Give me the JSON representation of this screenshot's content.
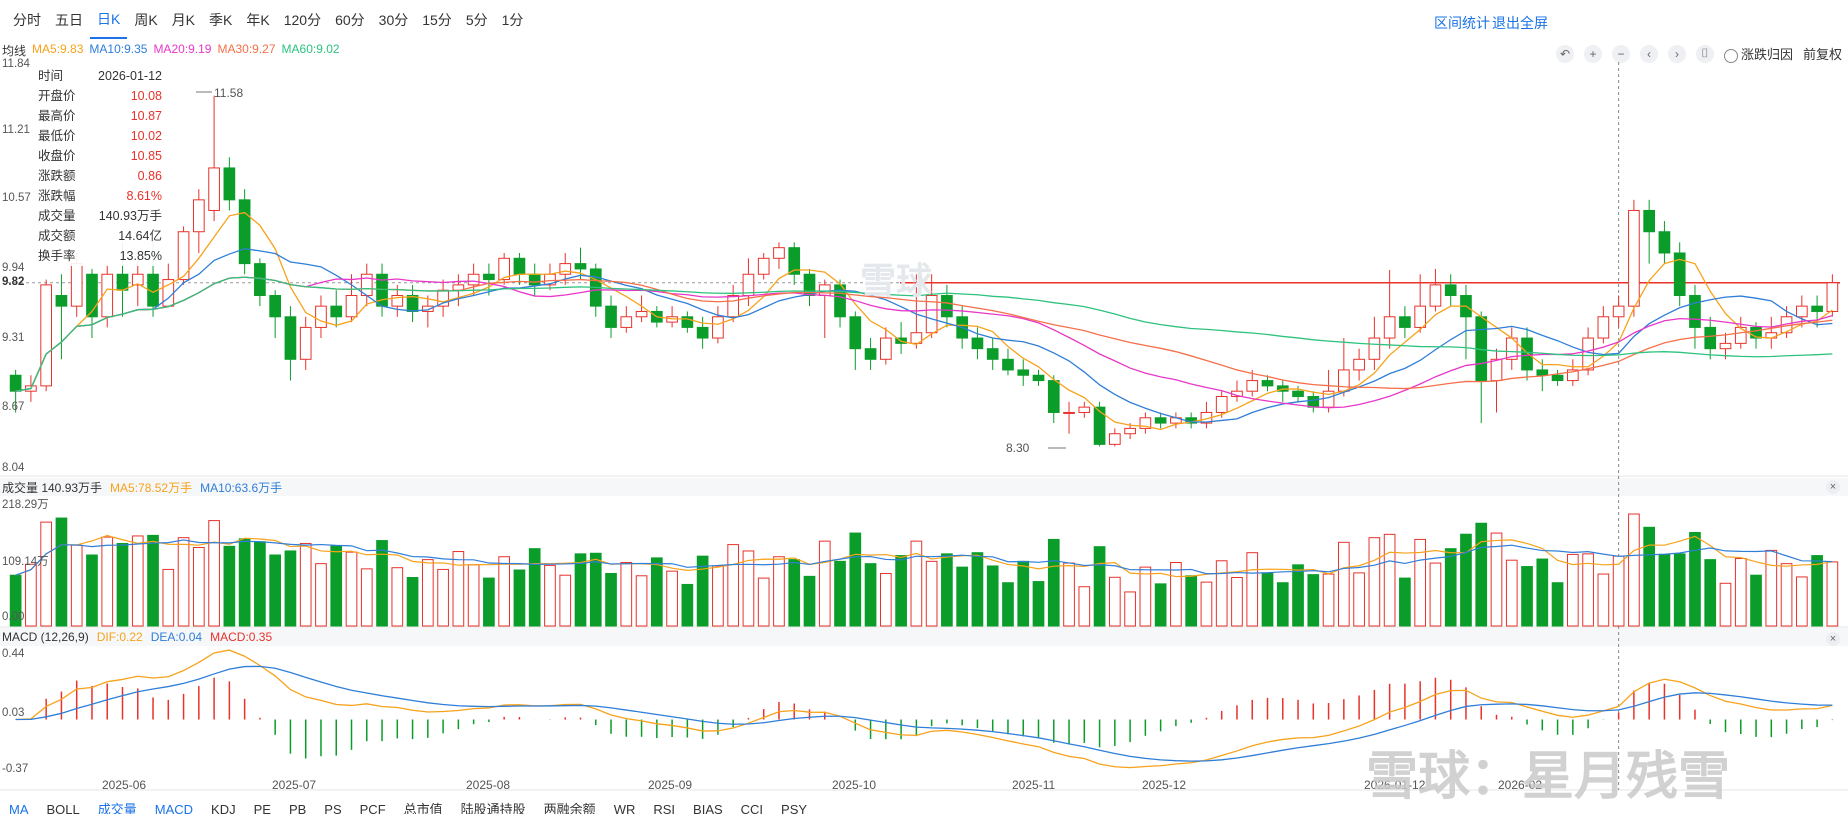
{
  "period_tabs": [
    "分时",
    "五日",
    "日K",
    "周K",
    "月K",
    "季K",
    "年K",
    "120分",
    "60分",
    "30分",
    "15分",
    "5分",
    "1分"
  ],
  "active_tab_index": 2,
  "top_links": {
    "range_stats": "区间统计",
    "exit_fullscreen": "退出全屏"
  },
  "ma_legend": {
    "prefix": "均线",
    "items": [
      {
        "label": "MA5:9.83",
        "color": "#f7a21b"
      },
      {
        "label": "MA10:9.35",
        "color": "#2f7ed8"
      },
      {
        "label": "MA20:9.19",
        "color": "#e837c9"
      },
      {
        "label": "MA30:9.27",
        "color": "#f5704a"
      },
      {
        "label": "MA60:9.02",
        "color": "#2ec27e"
      }
    ]
  },
  "toolbar": {
    "undo": "↶",
    "zoom_in": "+",
    "zoom_out": "−",
    "prev": "‹",
    "next": "›",
    "reset": "⌷",
    "toggle_label": "涨跌归因",
    "adjust_label": "前复权"
  },
  "info_panel": [
    {
      "k": "时间",
      "v": "2026-01-12",
      "cls": "plain"
    },
    {
      "k": "开盘价",
      "v": "10.08",
      "cls": "up"
    },
    {
      "k": "最高价",
      "v": "10.87",
      "cls": "up"
    },
    {
      "k": "最低价",
      "v": "10.02",
      "cls": "up"
    },
    {
      "k": "收盘价",
      "v": "10.85",
      "cls": "up"
    },
    {
      "k": "涨跌额",
      "v": "0.86",
      "cls": "up"
    },
    {
      "k": "涨跌幅",
      "v": "8.61%",
      "cls": "up"
    },
    {
      "k": "成交量",
      "v": "140.93万手",
      "cls": "plain"
    },
    {
      "k": "成交额",
      "v": "14.64亿",
      "cls": "plain"
    },
    {
      "k": "换手率",
      "v": "13.85%",
      "cls": "plain"
    }
  ],
  "price_axis": [
    "11.84",
    "11.21",
    "10.57",
    "9.94",
    "9.82",
    "9.31",
    "8.67",
    "8.04"
  ],
  "annotations": {
    "high": "11.58",
    "low": "8.30"
  },
  "volume_legend": {
    "title": "成交量 140.93万手",
    "ma5": "MA5:78.52万手",
    "ma10": "MA10:63.6万手",
    "ma5_color": "#f7a21b",
    "ma10_color": "#2f7ed8"
  },
  "volume_axis": [
    "218.29万",
    "109.14万",
    "0.00"
  ],
  "macd_legend": {
    "title": "MACD (12,26,9)",
    "dif": "DIF:0.22",
    "dea": "DEA:0.04",
    "macd": "MACD:0.35",
    "dif_color": "#f7a21b",
    "dea_color": "#2f7ed8",
    "macd_color": "#e8322b"
  },
  "macd_axis": [
    "0.44",
    "0.03",
    "-0.37"
  ],
  "x_axis": [
    "2025-06",
    "2025-07",
    "2025-08",
    "2025-09",
    "2025-10",
    "2025-11",
    "2025-12",
    "2026-01-12",
    "2026-02"
  ],
  "watermark": {
    "logo": "雪球",
    "credit": "雪球：星月残雪"
  },
  "bottom_tabs": [
    "MA",
    "BOLL",
    "成交量",
    "MACD",
    "KDJ",
    "PE",
    "PB",
    "PS",
    "PCF",
    "总市值",
    "陆股通持股",
    "两融余额",
    "WR",
    "RSI",
    "BIAS",
    "CCI",
    "PSY"
  ],
  "bottom_active": [
    0,
    2,
    3
  ],
  "colors": {
    "up": "#e8322b",
    "down": "#0b9d2a",
    "accent": "#1a73e8"
  },
  "chart_data": {
    "type": "candlestick",
    "title": "",
    "x_ticks": [
      "2025-06",
      "2025-07",
      "2025-08",
      "2025-09",
      "2025-10",
      "2025-11",
      "2025-12",
      "2026-01-12",
      "2026-02"
    ],
    "ylim": [
      8.04,
      11.84
    ],
    "reference_price": 9.82,
    "ohlc": [
      [
        8.95,
        8.8,
        8.6,
        9.0
      ],
      [
        8.8,
        8.85,
        8.7,
        8.95
      ],
      [
        8.85,
        9.8,
        8.8,
        9.85
      ],
      [
        9.7,
        9.6,
        9.1,
        9.9
      ],
      [
        9.6,
        10.0,
        9.5,
        10.1
      ],
      [
        9.9,
        9.5,
        9.3,
        9.95
      ],
      [
        9.5,
        9.9,
        9.4,
        10.0
      ],
      [
        9.9,
        9.75,
        9.5,
        10.2
      ],
      [
        9.8,
        9.9,
        9.6,
        10.1
      ],
      [
        9.9,
        9.6,
        9.5,
        10.2
      ],
      [
        9.6,
        9.85,
        9.6,
        10.0
      ],
      [
        9.85,
        10.3,
        9.8,
        10.35
      ],
      [
        10.3,
        10.6,
        10.1,
        10.7
      ],
      [
        10.5,
        10.9,
        10.4,
        11.58
      ],
      [
        10.9,
        10.6,
        10.5,
        11.0
      ],
      [
        10.6,
        10.0,
        9.9,
        10.7
      ],
      [
        10.0,
        9.7,
        9.6,
        10.05
      ],
      [
        9.7,
        9.5,
        9.3,
        9.75
      ],
      [
        9.5,
        9.1,
        8.9,
        9.6
      ],
      [
        9.1,
        9.4,
        9.0,
        9.5
      ],
      [
        9.4,
        9.6,
        9.3,
        9.7
      ],
      [
        9.6,
        9.5,
        9.4,
        9.75
      ],
      [
        9.5,
        9.7,
        9.45,
        9.9
      ],
      [
        9.7,
        9.9,
        9.6,
        10.0
      ],
      [
        9.9,
        9.6,
        9.5,
        10.0
      ],
      [
        9.6,
        9.7,
        9.5,
        9.8
      ],
      [
        9.7,
        9.55,
        9.45,
        9.8
      ],
      [
        9.55,
        9.6,
        9.4,
        9.7
      ],
      [
        9.6,
        9.75,
        9.5,
        9.85
      ],
      [
        9.75,
        9.8,
        9.6,
        9.9
      ],
      [
        9.8,
        9.9,
        9.7,
        10.0
      ],
      [
        9.9,
        9.85,
        9.7,
        10.0
      ],
      [
        9.85,
        10.05,
        9.8,
        10.1
      ],
      [
        10.05,
        9.9,
        9.8,
        10.1
      ],
      [
        9.9,
        9.8,
        9.7,
        10.0
      ],
      [
        9.8,
        9.9,
        9.75,
        10.0
      ],
      [
        9.9,
        10.0,
        9.8,
        10.1
      ],
      [
        10.0,
        9.95,
        9.85,
        10.15
      ],
      [
        9.95,
        9.6,
        9.5,
        10.0
      ],
      [
        9.6,
        9.4,
        9.3,
        9.7
      ],
      [
        9.4,
        9.5,
        9.35,
        9.6
      ],
      [
        9.5,
        9.55,
        9.45,
        9.7
      ],
      [
        9.55,
        9.45,
        9.4,
        9.6
      ],
      [
        9.45,
        9.5,
        9.4,
        9.6
      ],
      [
        9.5,
        9.4,
        9.35,
        9.55
      ],
      [
        9.4,
        9.3,
        9.2,
        9.5
      ],
      [
        9.3,
        9.5,
        9.25,
        9.6
      ],
      [
        9.5,
        9.7,
        9.45,
        9.8
      ],
      [
        9.7,
        9.9,
        9.6,
        10.05
      ],
      [
        9.9,
        10.05,
        9.85,
        10.1
      ],
      [
        10.05,
        10.15,
        9.95,
        10.2
      ],
      [
        10.15,
        9.9,
        9.8,
        10.2
      ],
      [
        9.9,
        9.7,
        9.6,
        9.95
      ],
      [
        9.7,
        9.8,
        9.3,
        9.85
      ],
      [
        9.8,
        9.5,
        9.4,
        9.85
      ],
      [
        9.5,
        9.2,
        9.0,
        9.55
      ],
      [
        9.2,
        9.1,
        9.0,
        9.3
      ],
      [
        9.1,
        9.3,
        9.05,
        9.4
      ],
      [
        9.3,
        9.25,
        9.15,
        9.45
      ],
      [
        9.25,
        9.35,
        9.2,
        9.9
      ],
      [
        9.35,
        9.7,
        9.3,
        9.9
      ],
      [
        9.7,
        9.5,
        9.4,
        9.8
      ],
      [
        9.5,
        9.3,
        9.2,
        9.6
      ],
      [
        9.3,
        9.2,
        9.1,
        9.4
      ],
      [
        9.2,
        9.1,
        9.0,
        9.3
      ],
      [
        9.1,
        9.0,
        8.95,
        9.2
      ],
      [
        9.0,
        8.95,
        8.85,
        9.1
      ],
      [
        8.95,
        8.9,
        8.85,
        9.0
      ],
      [
        8.9,
        8.6,
        8.5,
        8.95
      ],
      [
        8.6,
        8.6,
        8.4,
        8.7
      ],
      [
        8.6,
        8.65,
        8.55,
        8.7
      ],
      [
        8.65,
        8.3,
        8.28,
        8.7
      ],
      [
        8.3,
        8.4,
        8.28,
        8.45
      ],
      [
        8.4,
        8.45,
        8.35,
        8.5
      ],
      [
        8.45,
        8.55,
        8.4,
        8.6
      ],
      [
        8.55,
        8.5,
        8.45,
        8.6
      ],
      [
        8.5,
        8.55,
        8.45,
        8.6
      ],
      [
        8.55,
        8.5,
        8.45,
        8.6
      ],
      [
        8.5,
        8.6,
        8.45,
        8.7
      ],
      [
        8.6,
        8.75,
        8.55,
        8.8
      ],
      [
        8.75,
        8.8,
        8.7,
        8.9
      ],
      [
        8.8,
        8.9,
        8.75,
        9.0
      ],
      [
        8.9,
        8.85,
        8.8,
        8.95
      ],
      [
        8.85,
        8.8,
        8.7,
        8.9
      ],
      [
        8.8,
        8.75,
        8.7,
        8.85
      ],
      [
        8.75,
        8.65,
        8.6,
        8.8
      ],
      [
        8.65,
        8.8,
        8.6,
        9.0
      ],
      [
        8.8,
        9.0,
        8.75,
        9.3
      ],
      [
        9.0,
        9.1,
        8.9,
        9.2
      ],
      [
        9.1,
        9.3,
        9.0,
        9.5
      ],
      [
        9.3,
        9.5,
        9.2,
        9.94
      ],
      [
        9.5,
        9.4,
        9.3,
        9.6
      ],
      [
        9.4,
        9.6,
        9.35,
        9.9
      ],
      [
        9.6,
        9.8,
        9.55,
        9.95
      ],
      [
        9.8,
        9.7,
        9.6,
        9.9
      ],
      [
        9.7,
        9.5,
        9.1,
        9.8
      ],
      [
        9.5,
        8.9,
        8.5,
        9.55
      ],
      [
        8.9,
        9.1,
        8.6,
        9.2
      ],
      [
        9.1,
        9.3,
        9.0,
        9.4
      ],
      [
        9.3,
        9.0,
        8.9,
        9.4
      ],
      [
        9.0,
        8.95,
        8.8,
        9.1
      ],
      [
        8.95,
        8.9,
        8.85,
        9.0
      ],
      [
        8.9,
        9.0,
        8.85,
        9.1
      ],
      [
        9.0,
        9.3,
        8.95,
        9.4
      ],
      [
        9.3,
        9.5,
        9.25,
        9.6
      ],
      [
        9.5,
        9.6,
        9.4,
        9.7
      ],
      [
        9.6,
        10.5,
        9.5,
        10.6
      ],
      [
        10.5,
        10.3,
        10.0,
        10.6
      ],
      [
        10.3,
        10.1,
        10.0,
        10.4
      ],
      [
        10.1,
        9.7,
        9.6,
        10.2
      ],
      [
        9.7,
        9.4,
        9.2,
        9.8
      ],
      [
        9.4,
        9.2,
        9.1,
        9.5
      ],
      [
        9.2,
        9.25,
        9.1,
        9.35
      ],
      [
        9.25,
        9.4,
        9.2,
        9.5
      ],
      [
        9.4,
        9.3,
        9.2,
        9.45
      ],
      [
        9.3,
        9.35,
        9.2,
        9.5
      ],
      [
        9.35,
        9.5,
        9.3,
        9.6
      ],
      [
        9.5,
        9.6,
        9.4,
        9.7
      ],
      [
        9.6,
        9.55,
        9.4,
        9.7
      ],
      [
        9.55,
        9.82,
        9.5,
        9.9
      ]
    ],
    "volume_ylim": [
      0,
      218.29
    ],
    "macd_ylim": [
      -0.37,
      0.44
    ]
  }
}
